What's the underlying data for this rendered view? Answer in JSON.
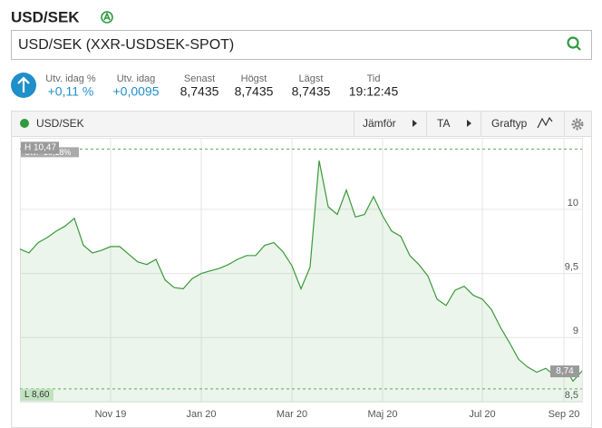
{
  "header": {
    "title": "USD/SEK",
    "search_text": "USD/SEK (XXR-USDSEK-SPOT)"
  },
  "stats": [
    {
      "label": "Utv. idag %",
      "value": "+0,11 %"
    },
    {
      "label": "Utv. idag",
      "value": "+0,0095"
    },
    {
      "label": "Senast",
      "value": "8,7435"
    },
    {
      "label": "Högst",
      "value": "8,7435"
    },
    {
      "label": "Lägst",
      "value": "8,7435"
    },
    {
      "label": "Tid",
      "value": "19:12:45"
    }
  ],
  "toolbar": {
    "series_label": "USD/SEK",
    "buttons": [
      "Jämför",
      "TA",
      "Graftyp"
    ]
  },
  "chart_data": {
    "type": "line",
    "categories": [
      null,
      null,
      null,
      null,
      null,
      null,
      null,
      null,
      null,
      null,
      "Nov 19",
      null,
      null,
      null,
      null,
      null,
      null,
      null,
      null,
      null,
      "Jan 20",
      null,
      null,
      null,
      null,
      null,
      null,
      null,
      null,
      null,
      "Mar 20",
      null,
      null,
      null,
      null,
      null,
      null,
      null,
      null,
      null,
      "Maj 20",
      null,
      null,
      null,
      null,
      null,
      null,
      null,
      null,
      null,
      null,
      "Jul 20",
      null,
      null,
      null,
      null,
      null,
      null,
      null,
      null,
      "Sep 20",
      null,
      null
    ],
    "series": [
      {
        "name": "USD/SEK",
        "color": "#3a9a3a",
        "values": [
          9.69,
          9.66,
          9.74,
          9.78,
          9.83,
          9.87,
          9.93,
          9.72,
          9.66,
          9.68,
          9.71,
          9.71,
          9.65,
          9.59,
          9.57,
          9.61,
          9.45,
          9.39,
          9.38,
          9.46,
          9.5,
          9.52,
          9.54,
          9.57,
          9.61,
          9.64,
          9.64,
          9.72,
          9.74,
          9.67,
          9.56,
          9.38,
          9.55,
          10.38,
          10.02,
          9.96,
          10.15,
          9.94,
          9.96,
          10.1,
          9.95,
          9.83,
          9.79,
          9.64,
          9.57,
          9.48,
          9.3,
          9.25,
          9.37,
          9.4,
          9.33,
          9.3,
          9.22,
          9.08,
          8.96,
          8.83,
          8.77,
          8.73,
          8.76,
          8.7,
          8.78,
          8.66,
          8.74
        ]
      }
    ],
    "ylim": [
      8.5,
      10.6
    ],
    "yticks": [
      {
        "value": 8.5,
        "label": "8,5"
      },
      9,
      {
        "value": 9.5,
        "label": "9,5"
      },
      10
    ],
    "grid": true,
    "high": {
      "value": 10.47,
      "label": "H 10,47"
    },
    "low": {
      "value": 8.6,
      "label": "L 8,60"
    },
    "last": {
      "value": 8.74,
      "label": "8,74"
    },
    "change_label": "Utv. -10,18%"
  }
}
